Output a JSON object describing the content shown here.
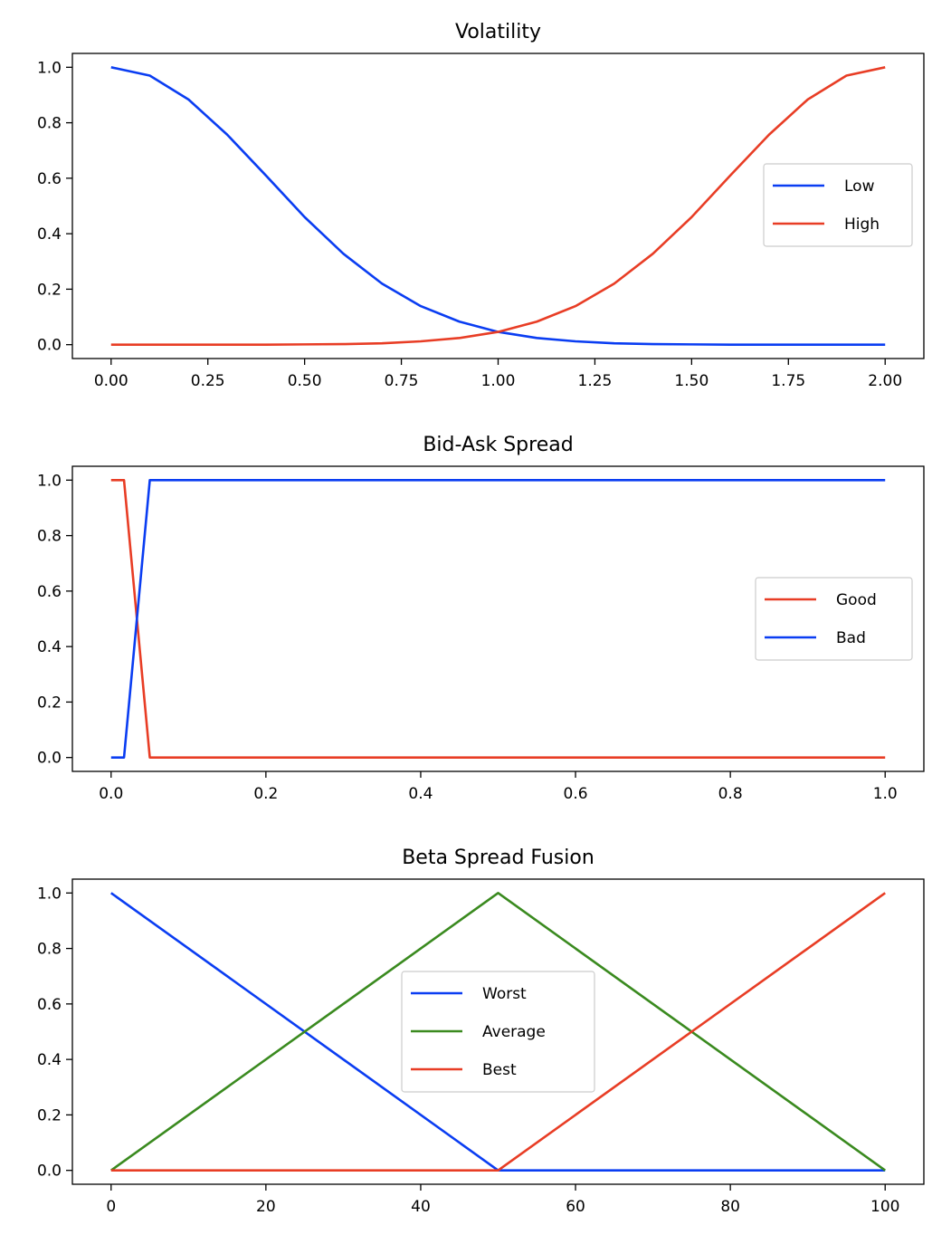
{
  "chart_data": [
    {
      "type": "line",
      "title": "Volatility",
      "xlabel": "",
      "ylabel": "",
      "xlim": [
        -0.1,
        2.1
      ],
      "ylim": [
        -0.05,
        1.05
      ],
      "xticks": [
        0.0,
        0.25,
        0.5,
        0.75,
        1.0,
        1.25,
        1.5,
        1.75,
        2.0
      ],
      "xtick_labels": [
        "0.00",
        "0.25",
        "0.50",
        "0.75",
        "1.00",
        "1.25",
        "1.50",
        "1.75",
        "2.00"
      ],
      "yticks": [
        0.0,
        0.2,
        0.4,
        0.6,
        0.8,
        1.0
      ],
      "ytick_labels": [
        "0.0",
        "0.2",
        "0.4",
        "0.6",
        "0.8",
        "1.0"
      ],
      "grid": false,
      "legend": "right",
      "series": [
        {
          "name": "Low",
          "color": "#0a3df2",
          "x": [
            0.0,
            0.1,
            0.2,
            0.3,
            0.4,
            0.5,
            0.6,
            0.7,
            0.8,
            0.9,
            1.0,
            1.1,
            1.2,
            1.3,
            1.4,
            1.5,
            1.6,
            1.7,
            1.8,
            1.9,
            2.0
          ],
          "y": [
            1.0,
            0.97,
            0.884,
            0.757,
            0.61,
            0.46,
            0.328,
            0.22,
            0.139,
            0.083,
            0.046,
            0.024,
            0.012,
            0.005,
            0.002,
            0.001,
            0.0,
            0.0,
            0.0,
            0.0,
            0.0
          ]
        },
        {
          "name": "High",
          "color": "#e83d25",
          "x": [
            0.0,
            0.1,
            0.2,
            0.3,
            0.4,
            0.5,
            0.6,
            0.7,
            0.8,
            0.9,
            1.0,
            1.1,
            1.2,
            1.3,
            1.4,
            1.5,
            1.6,
            1.7,
            1.8,
            1.9,
            2.0
          ],
          "y": [
            0.0,
            0.0,
            0.0,
            0.0,
            0.0,
            0.001,
            0.002,
            0.005,
            0.012,
            0.024,
            0.046,
            0.083,
            0.139,
            0.22,
            0.328,
            0.46,
            0.61,
            0.757,
            0.884,
            0.97,
            1.0
          ]
        }
      ]
    },
    {
      "type": "line",
      "title": "Bid-Ask Spread",
      "xlabel": "",
      "ylabel": "",
      "xlim": [
        -0.05,
        1.05
      ],
      "ylim": [
        -0.05,
        1.05
      ],
      "xticks": [
        0.0,
        0.2,
        0.4,
        0.6,
        0.8,
        1.0
      ],
      "xtick_labels": [
        "0.0",
        "0.2",
        "0.4",
        "0.6",
        "0.8",
        "1.0"
      ],
      "yticks": [
        0.0,
        0.2,
        0.4,
        0.6,
        0.8,
        1.0
      ],
      "ytick_labels": [
        "0.0",
        "0.2",
        "0.4",
        "0.6",
        "0.8",
        "1.0"
      ],
      "grid": false,
      "legend": "right",
      "series": [
        {
          "name": "Good",
          "color": "#e83d25",
          "x": [
            0.0,
            0.0167,
            0.05,
            1.0
          ],
          "y": [
            1.0,
            1.0,
            0.0,
            0.0
          ]
        },
        {
          "name": "Bad",
          "color": "#0a3df2",
          "x": [
            0.0,
            0.0167,
            0.05,
            1.0
          ],
          "y": [
            0.0,
            0.0,
            1.0,
            1.0
          ]
        }
      ]
    },
    {
      "type": "line",
      "title": "Beta Spread Fusion",
      "xlabel": "",
      "ylabel": "",
      "xlim": [
        -5,
        105
      ],
      "ylim": [
        -0.05,
        1.05
      ],
      "xticks": [
        0,
        20,
        40,
        60,
        80,
        100
      ],
      "xtick_labels": [
        "0",
        "20",
        "40",
        "60",
        "80",
        "100"
      ],
      "yticks": [
        0.0,
        0.2,
        0.4,
        0.6,
        0.8,
        1.0
      ],
      "ytick_labels": [
        "0.0",
        "0.2",
        "0.4",
        "0.6",
        "0.8",
        "1.0"
      ],
      "grid": false,
      "legend": "center",
      "series": [
        {
          "name": "Worst",
          "color": "#0a3df2",
          "x": [
            0,
            50,
            100
          ],
          "y": [
            1.0,
            0.0,
            0.0
          ]
        },
        {
          "name": "Average",
          "color": "#3a8a1f",
          "x": [
            0,
            50,
            100
          ],
          "y": [
            0.0,
            1.0,
            0.0
          ]
        },
        {
          "name": "Best",
          "color": "#e83d25",
          "x": [
            0,
            50,
            100
          ],
          "y": [
            0.0,
            0.0,
            1.0
          ]
        }
      ]
    }
  ]
}
